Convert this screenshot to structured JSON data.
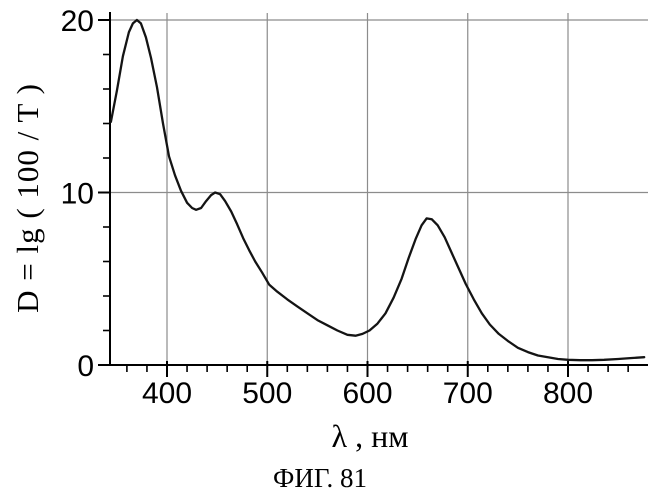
{
  "figure": {
    "caption": "ФИГ. 81"
  },
  "colors": {
    "background": "#ffffff",
    "axis": "#000000",
    "grid": "#8c8c8c",
    "curve": "#141414",
    "text": "#000000"
  },
  "chart_data": {
    "type": "line",
    "title": "",
    "xlabel": "λ , нм",
    "ylabel": "D = lg ( 100 / T )",
    "xlim": [
      343,
      880
    ],
    "ylim": [
      0,
      20.5
    ],
    "grid": true,
    "x_ticks_major": [
      400,
      500,
      600,
      700,
      800
    ],
    "x_tick_minor_step": 20,
    "x_minor_range": [
      360,
      870
    ],
    "y_ticks_major": [
      0,
      10,
      20
    ],
    "y_tick_minor_step": 2,
    "series": [
      {
        "name": "absorption-spectrum",
        "x": [
          344,
          350,
          356,
          362,
          366,
          370,
          374,
          379,
          384,
          390,
          396,
          402,
          408,
          414,
          420,
          425,
          429,
          434,
          439,
          444,
          448,
          453,
          458,
          464,
          470,
          476,
          482,
          488,
          495,
          502,
          510,
          520,
          530,
          540,
          550,
          560,
          570,
          580,
          588,
          595,
          602,
          610,
          618,
          626,
          634,
          641,
          648,
          654,
          659,
          664,
          670,
          677,
          684,
          691,
          698,
          706,
          714,
          722,
          731,
          740,
          750,
          760,
          770,
          780,
          790,
          800,
          812,
          824,
          836,
          850,
          862,
          876
        ],
        "y": [
          14.1,
          15.9,
          17.9,
          19.3,
          19.8,
          20.0,
          19.8,
          19.0,
          17.8,
          16.1,
          14.0,
          12.1,
          11.0,
          10.1,
          9.4,
          9.1,
          9.0,
          9.1,
          9.5,
          9.85,
          10.0,
          9.9,
          9.5,
          8.9,
          8.15,
          7.35,
          6.65,
          6.0,
          5.35,
          4.65,
          4.25,
          3.8,
          3.4,
          3.0,
          2.6,
          2.3,
          2.0,
          1.75,
          1.7,
          1.8,
          2.0,
          2.4,
          3.0,
          3.9,
          5.0,
          6.2,
          7.3,
          8.1,
          8.5,
          8.45,
          8.1,
          7.4,
          6.5,
          5.6,
          4.7,
          3.8,
          3.0,
          2.35,
          1.8,
          1.4,
          1.0,
          0.75,
          0.55,
          0.45,
          0.35,
          0.3,
          0.28,
          0.28,
          0.3,
          0.35,
          0.4,
          0.45
        ]
      }
    ]
  }
}
